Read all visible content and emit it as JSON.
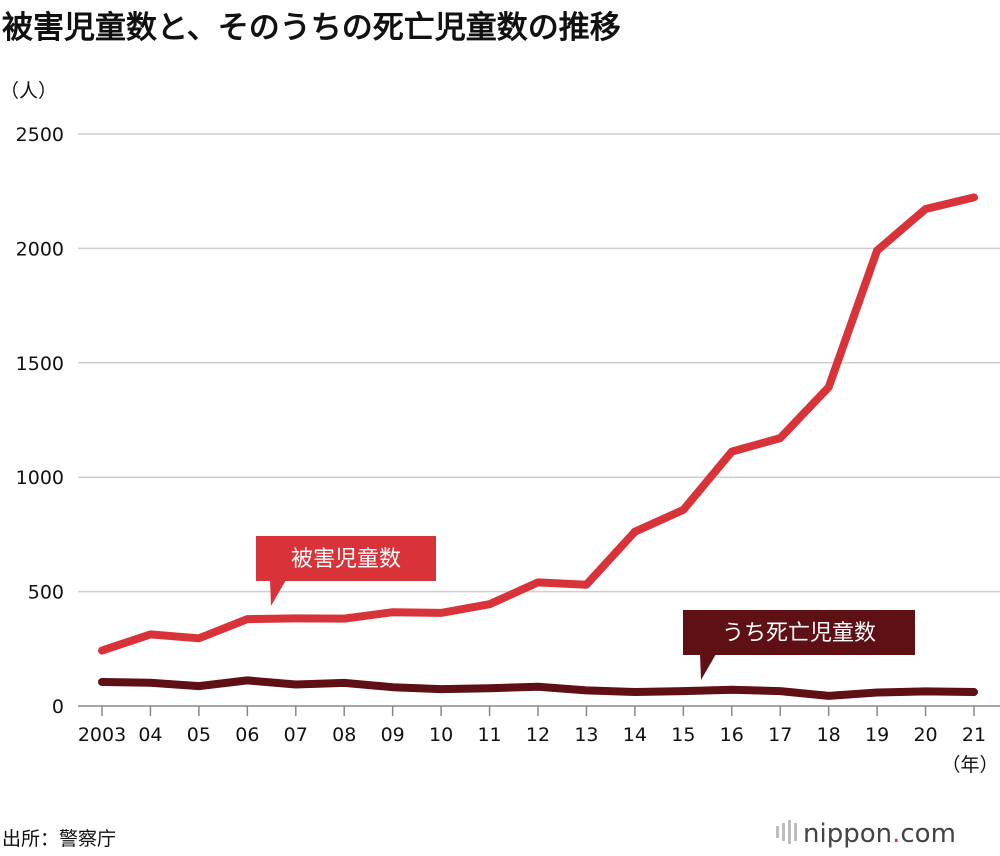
{
  "title": "被害児童数と、そのうちの死亡児童数の推移",
  "source": "出所：警察庁",
  "logo": {
    "name": "nippon",
    "dot": ".",
    "domain": "com"
  },
  "colors": {
    "victims": "#d9333a",
    "deaths": "#5e1015",
    "grid": "#cfcfcf",
    "dot": "#d9333a"
  },
  "chart_data": {
    "type": "line",
    "title": "被害児童数と、そのうちの死亡児童数の推移",
    "ylabel": "（人）",
    "xlabel": "（年）",
    "ylim": [
      0,
      2500
    ],
    "yticks": [
      0,
      500,
      1000,
      1500,
      2000,
      2500
    ],
    "x": [
      "2003",
      "04",
      "05",
      "06",
      "07",
      "08",
      "09",
      "10",
      "11",
      "12",
      "13",
      "14",
      "15",
      "16",
      "17",
      "18",
      "19",
      "20",
      "21"
    ],
    "series": [
      {
        "name": "被害児童数",
        "values": [
          242,
          313,
          296,
          380,
          383,
          382,
          410,
          407,
          445,
          540,
          530,
          762,
          857,
          1112,
          1171,
          1394,
          1991,
          2172,
          2223
        ]
      },
      {
        "name": "うち死亡児童数",
        "values": [
          105,
          102,
          87,
          112,
          94,
          101,
          82,
          74,
          78,
          84,
          68,
          61,
          65,
          71,
          65,
          44,
          59,
          64,
          61
        ]
      }
    ]
  }
}
